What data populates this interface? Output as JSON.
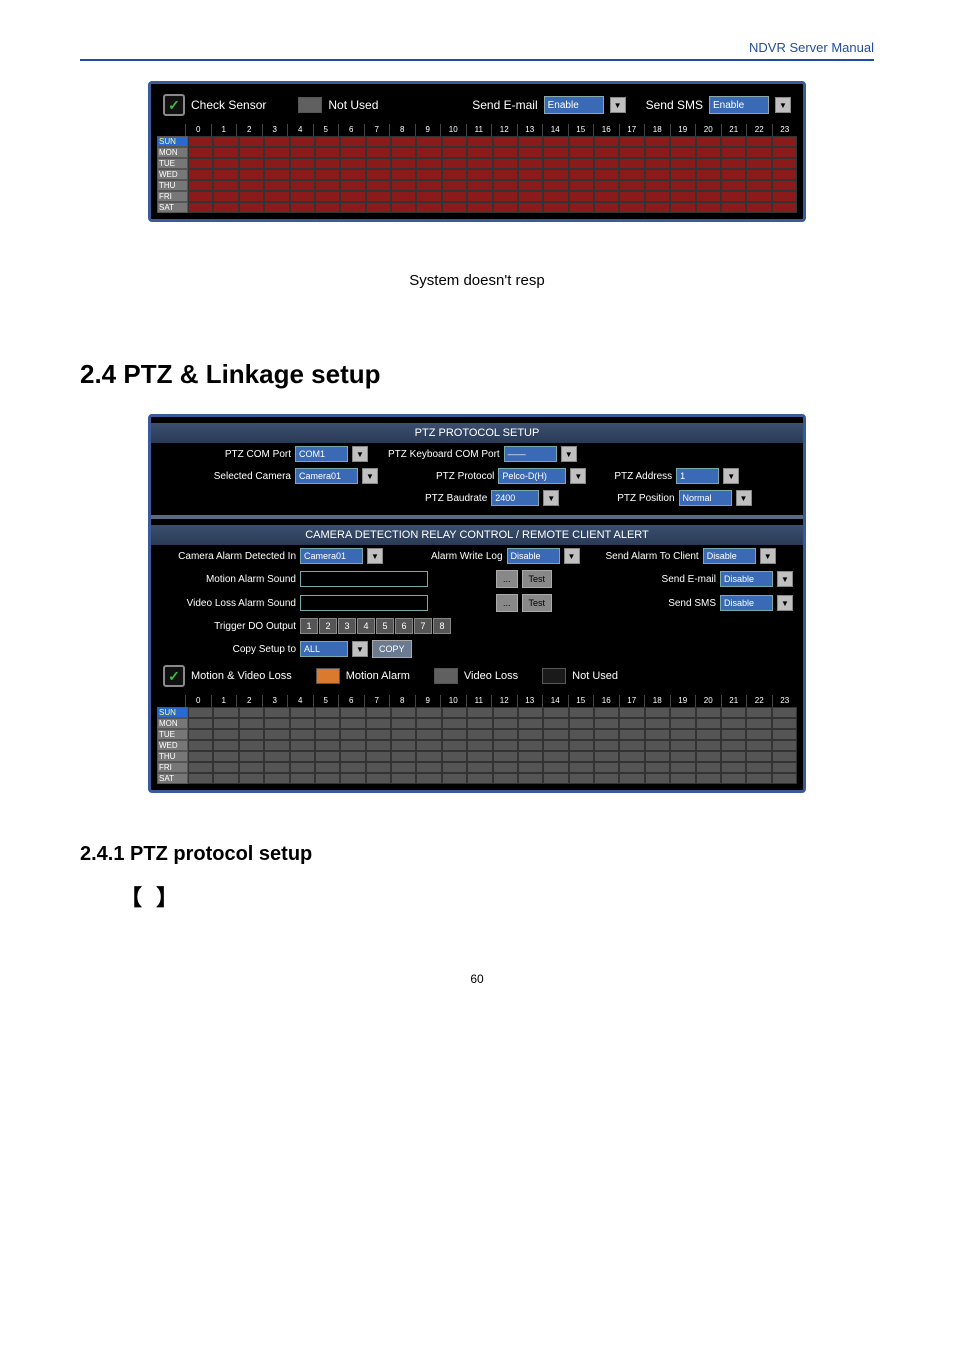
{
  "header": {
    "title": "NDVR Server Manual"
  },
  "panel1": {
    "check_sensor_label": "Check Sensor",
    "not_used_label": "Not Used",
    "send_email_label": "Send E-mail",
    "send_email_value": "Enable",
    "send_sms_label": "Send SMS",
    "send_sms_value": "Enable",
    "hours": [
      "0",
      "1",
      "2",
      "3",
      "4",
      "5",
      "6",
      "7",
      "8",
      "9",
      "10",
      "11",
      "12",
      "13",
      "14",
      "15",
      "16",
      "17",
      "18",
      "19",
      "20",
      "21",
      "22",
      "23"
    ],
    "days": [
      "SUN",
      "MON",
      "TUE",
      "WED",
      "THU",
      "FRI",
      "SAT"
    ],
    "cell_color_r": "#8b1a1a",
    "cell_color_g": "#555555"
  },
  "caption": {
    "text": "System doesn't resp"
  },
  "section": {
    "title": "2.4 PTZ & Linkage setup",
    "sub1": "2.4.1 PTZ protocol setup",
    "bracket_text": "【              】"
  },
  "panel2": {
    "title1": "PTZ PROTOCOL SETUP",
    "ptz_com_port_label": "PTZ COM Port",
    "ptz_com_port_value": "COM1",
    "ptz_kbd_label": "PTZ Keyboard COM Port",
    "ptz_kbd_value": "——",
    "selected_camera_label": "Selected Camera",
    "selected_camera_value": "Camera01",
    "ptz_protocol_label": "PTZ Protocol",
    "ptz_protocol_value": "Pelco-D(H)",
    "ptz_address_label": "PTZ Address",
    "ptz_address_value": "1",
    "ptz_baud_label": "PTZ Baudrate",
    "ptz_baud_value": "2400",
    "ptz_position_label": "PTZ Position",
    "ptz_position_value": "Normal",
    "title2": "CAMERA DETECTION RELAY CONTROL / REMOTE CLIENT ALERT",
    "cam_alarm_label": "Camera Alarm Detected In",
    "cam_alarm_value": "Camera01",
    "alarm_log_label": "Alarm Write Log",
    "alarm_log_value": "Disable",
    "send_alarm_client_label": "Send Alarm To Client",
    "send_alarm_client_value": "Disable",
    "motion_sound_label": "Motion Alarm Sound",
    "test1": "Test",
    "send_email_label": "Send E-mail",
    "send_email_value": "Disable",
    "video_loss_sound_label": "Video Loss Alarm Sound",
    "test2": "Test",
    "send_sms_label": "Send SMS",
    "send_sms_value": "Disable",
    "trigger_label": "Trigger DO Output",
    "do_buttons": [
      "1",
      "2",
      "3",
      "4",
      "5",
      "6",
      "7",
      "8"
    ],
    "copy_label": "Copy Setup to",
    "copy_value": "ALL",
    "copy_btn": "COPY",
    "legend_motion_video": "Motion & Video Loss",
    "legend_motion_alarm": "Motion Alarm",
    "legend_video_loss": "Video Loss",
    "legend_not_used": "Not Used",
    "hours": [
      "0",
      "1",
      "2",
      "3",
      "4",
      "5",
      "6",
      "7",
      "8",
      "9",
      "10",
      "11",
      "12",
      "13",
      "14",
      "15",
      "16",
      "17",
      "18",
      "19",
      "20",
      "21",
      "22",
      "23"
    ],
    "days": [
      "SUN",
      "MON",
      "TUE",
      "WED",
      "THU",
      "FRI",
      "SAT"
    ]
  },
  "footer": {
    "page": "60"
  }
}
